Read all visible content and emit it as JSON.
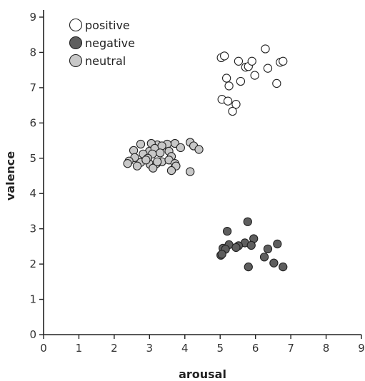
{
  "chart_data": {
    "type": "scatter",
    "xlabel": "arousal",
    "ylabel": "valence",
    "xlim": [
      0,
      9
    ],
    "ylim": [
      0,
      9
    ],
    "xticks": [
      "0",
      "1",
      "2",
      "3",
      "4",
      "5",
      "6",
      "7",
      "8",
      "9"
    ],
    "yticks": [
      "0",
      "1",
      "2",
      "3",
      "4",
      "5",
      "6",
      "7",
      "8",
      "9"
    ],
    "grid": false,
    "legend": "top-left",
    "series": [
      {
        "name": "positive",
        "color": "#ffffff",
        "points": [
          [
            5.03,
            7.85
          ],
          [
            5.12,
            7.9
          ],
          [
            5.52,
            7.75
          ],
          [
            5.72,
            7.58
          ],
          [
            5.8,
            7.6
          ],
          [
            5.9,
            7.75
          ],
          [
            6.28,
            8.1
          ],
          [
            6.7,
            7.72
          ],
          [
            6.78,
            7.75
          ],
          [
            5.18,
            7.27
          ],
          [
            5.25,
            7.05
          ],
          [
            5.58,
            7.18
          ],
          [
            5.98,
            7.35
          ],
          [
            6.35,
            7.55
          ],
          [
            6.6,
            7.12
          ],
          [
            5.05,
            6.67
          ],
          [
            5.22,
            6.62
          ],
          [
            5.45,
            6.53
          ],
          [
            5.35,
            6.33
          ]
        ]
      },
      {
        "name": "negative",
        "color": "#5e5e5e",
        "points": [
          [
            5.78,
            3.2
          ],
          [
            5.2,
            2.93
          ],
          [
            5.95,
            2.72
          ],
          [
            5.7,
            2.6
          ],
          [
            6.62,
            2.57
          ],
          [
            5.25,
            2.55
          ],
          [
            5.52,
            2.52
          ],
          [
            5.88,
            2.53
          ],
          [
            5.45,
            2.47
          ],
          [
            5.08,
            2.45
          ],
          [
            6.35,
            2.43
          ],
          [
            5.15,
            2.42
          ],
          [
            5.02,
            2.25
          ],
          [
            5.05,
            2.28
          ],
          [
            6.25,
            2.2
          ],
          [
            6.52,
            2.03
          ],
          [
            5.8,
            1.92
          ],
          [
            6.78,
            1.92
          ]
        ]
      },
      {
        "name": "neutral",
        "color": "#c8c8c8",
        "points": [
          [
            4.15,
            5.45
          ],
          [
            4.25,
            5.35
          ],
          [
            4.4,
            5.25
          ],
          [
            3.72,
            5.42
          ],
          [
            3.5,
            5.4
          ],
          [
            3.22,
            5.38
          ],
          [
            3.05,
            5.42
          ],
          [
            2.75,
            5.4
          ],
          [
            3.0,
            5.2
          ],
          [
            3.15,
            5.28
          ],
          [
            3.35,
            5.35
          ],
          [
            3.55,
            5.2
          ],
          [
            3.88,
            5.3
          ],
          [
            3.3,
            5.15
          ],
          [
            3.08,
            5.12
          ],
          [
            2.55,
            5.22
          ],
          [
            2.82,
            5.12
          ],
          [
            3.62,
            5.05
          ],
          [
            2.95,
            5.0
          ],
          [
            2.58,
            5.02
          ],
          [
            2.42,
            4.92
          ],
          [
            2.38,
            4.85
          ],
          [
            2.75,
            4.88
          ],
          [
            3.02,
            4.82
          ],
          [
            3.2,
            4.85
          ],
          [
            3.35,
            4.9
          ],
          [
            3.55,
            4.95
          ],
          [
            3.72,
            4.85
          ],
          [
            3.75,
            4.78
          ],
          [
            2.65,
            4.78
          ],
          [
            3.1,
            4.72
          ],
          [
            3.62,
            4.65
          ],
          [
            4.15,
            4.62
          ],
          [
            3.22,
            4.9
          ],
          [
            2.9,
            4.95
          ]
        ]
      }
    ]
  }
}
